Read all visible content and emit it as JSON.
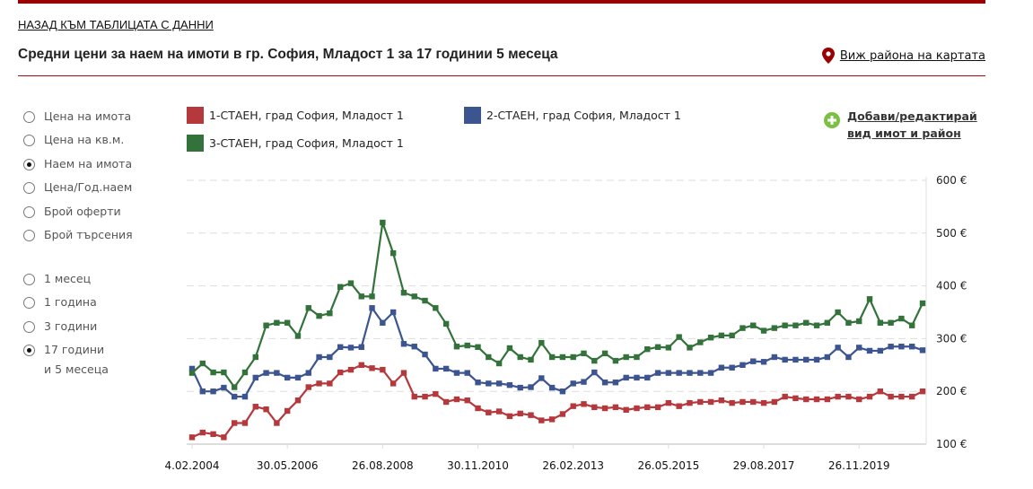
{
  "header": {
    "back_link": "НАЗАД КЪМ ТАБЛИЦАТА С ДАННИ",
    "title": "Средни цени за наем на имоти в гр. София, Младост 1 за 17 годинии 5 месеца",
    "map_link": "Виж района на картата"
  },
  "metric_options": [
    {
      "label": "Цена на имота",
      "selected": false
    },
    {
      "label": "Цена на кв.м.",
      "selected": false
    },
    {
      "label": "Наем на имота",
      "selected": true
    },
    {
      "label": "Цена/Год.наем",
      "selected": false
    },
    {
      "label": "Брой оферти",
      "selected": false
    },
    {
      "label": "Брой търсения",
      "selected": false
    }
  ],
  "period_options": [
    {
      "label": "1 месец",
      "selected": false
    },
    {
      "label": "1 година",
      "selected": false
    },
    {
      "label": "3 години",
      "selected": false
    },
    {
      "label": "17 години",
      "label2": "и 5 месеца",
      "selected": true
    }
  ],
  "add_link": {
    "line1": "Добави/редактирай",
    "line2": "вид имот и район"
  },
  "colors": {
    "accent": "#990000",
    "series1": "#b5393c",
    "series2": "#3c5490",
    "series3": "#33723a",
    "add_icon": "#7cc043"
  },
  "chart_data": {
    "type": "line",
    "title": "",
    "xlabel": "",
    "ylabel": "",
    "ylim": [
      100,
      600
    ],
    "y_ticks": [
      "600 €",
      "500 €",
      "400 €",
      "300 €",
      "200 €",
      "100 €"
    ],
    "y_tick_values": [
      600,
      500,
      400,
      300,
      200,
      100
    ],
    "x_tick_labels": [
      "4.02.2004",
      "30.05.2006",
      "26.08.2008",
      "30.11.2010",
      "26.02.2013",
      "26.05.2015",
      "29.08.2017",
      "26.11.2019"
    ],
    "x_tick_every": 9,
    "grid": true,
    "legend": "top",
    "series": [
      {
        "name": "1-СТАЕН, град София, Младост 1",
        "color": "#b5393c",
        "values": [
          113,
          122,
          119,
          113,
          140,
          140,
          171,
          166,
          140,
          163,
          183,
          208,
          215,
          215,
          236,
          241,
          250,
          244,
          241,
          215,
          235,
          190,
          190,
          195,
          180,
          185,
          183,
          168,
          160,
          162,
          153,
          158,
          155,
          145,
          147,
          157,
          172,
          176,
          170,
          168,
          170,
          165,
          168,
          170,
          170,
          178,
          172,
          178,
          180,
          180,
          183,
          178,
          180,
          180,
          178,
          180,
          190,
          187,
          185,
          185,
          185,
          190,
          190,
          185,
          190,
          200,
          190,
          190,
          190,
          200
        ]
      },
      {
        "name": "2-СТАЕН, град София, Младост 1",
        "color": "#3c5490",
        "values": [
          243,
          200,
          200,
          207,
          190,
          190,
          226,
          235,
          235,
          226,
          226,
          235,
          265,
          265,
          284,
          283,
          284,
          358,
          330,
          350,
          290,
          285,
          270,
          243,
          243,
          235,
          235,
          217,
          215,
          215,
          212,
          207,
          208,
          225,
          207,
          200,
          215,
          218,
          236,
          217,
          217,
          226,
          226,
          226,
          235,
          235,
          235,
          235,
          235,
          235,
          245,
          245,
          250,
          257,
          256,
          265,
          260,
          260,
          260,
          260,
          265,
          283,
          265,
          283,
          277,
          277,
          285,
          285,
          285,
          278
        ]
      },
      {
        "name": "3-СТАЕН, град София, Младост 1",
        "color": "#33723a",
        "values": [
          235,
          253,
          236,
          236,
          208,
          236,
          265,
          325,
          330,
          330,
          305,
          358,
          343,
          348,
          398,
          405,
          380,
          380,
          520,
          462,
          387,
          380,
          372,
          358,
          328,
          285,
          287,
          284,
          265,
          253,
          282,
          265,
          260,
          292,
          265,
          265,
          265,
          272,
          258,
          272,
          258,
          265,
          265,
          280,
          284,
          283,
          303,
          283,
          293,
          302,
          306,
          306,
          320,
          325,
          315,
          320,
          325,
          325,
          330,
          325,
          330,
          350,
          330,
          333,
          375,
          330,
          330,
          338,
          325,
          367
        ]
      }
    ]
  }
}
